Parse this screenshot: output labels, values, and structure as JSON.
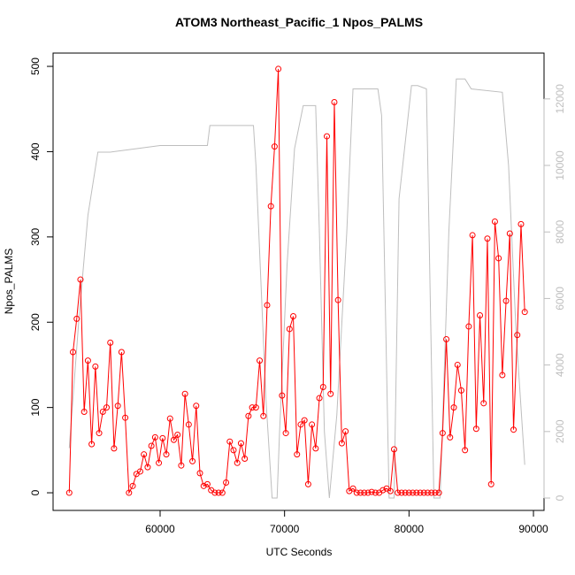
{
  "chart_data": {
    "type": "line",
    "title": "ATOM3 Northeast_Pacific_1 Npos_PALMS",
    "x_label": "UTC Seconds",
    "y_label": "Npos_PALMS",
    "xlim": [
      51400,
      90850
    ],
    "xticks": [
      60000,
      70000,
      80000,
      90000
    ],
    "ylim": [
      -20.7,
      515.6
    ],
    "yticks": [
      0,
      100,
      200,
      300,
      400,
      500
    ],
    "y2lim": [
      -372,
      13378
    ],
    "y2ticks": [
      0,
      2000,
      4000,
      6000,
      8000,
      10000,
      12000
    ],
    "y2_color": "#bebebe",
    "series": [
      {
        "color": "#ff0000",
        "markers": true,
        "x": [
          52700,
          53000,
          53300,
          53600,
          53900,
          54200,
          54500,
          54800,
          55100,
          55400,
          55700,
          56000,
          56300,
          56600,
          56900,
          57200,
          57500,
          57800,
          58100,
          58400,
          58700,
          59000,
          59300,
          59600,
          59900,
          60200,
          60500,
          60800,
          61100,
          61400,
          61700,
          62000,
          62300,
          62600,
          62900,
          63200,
          63500,
          63800,
          64100,
          64400,
          64700,
          65000,
          65300,
          65600,
          65900,
          66200,
          66500,
          66800,
          67100,
          67400,
          67700,
          68000,
          68300,
          68600,
          68900,
          69200,
          69500,
          69800,
          70100,
          70400,
          70700,
          71000,
          71300,
          71600,
          71900,
          72200,
          72500,
          72800,
          73100,
          73400,
          73700,
          74000,
          74300,
          74600,
          74900,
          75200,
          75500,
          75800,
          76100,
          76400,
          76700,
          77000,
          77300,
          77600,
          77900,
          78200,
          78500,
          78800,
          79100,
          79400,
          79700,
          80000,
          80300,
          80600,
          80900,
          81200,
          81500,
          81800,
          82100,
          82400,
          82700,
          83000,
          83300,
          83600,
          83900,
          84200,
          84500,
          84800,
          85100,
          85400,
          85700,
          86000,
          86300,
          86600,
          86900,
          87200,
          87500,
          87800,
          88100,
          88400,
          88700,
          89000,
          89300
        ],
        "values": [
          0,
          165,
          204,
          250,
          95,
          155,
          57,
          148,
          70,
          95,
          100,
          176,
          52,
          102,
          165,
          88,
          0,
          8,
          22,
          25,
          45,
          30,
          55,
          65,
          35,
          64,
          45,
          87,
          62,
          68,
          32,
          116,
          80,
          37,
          102,
          23,
          8,
          10,
          3,
          0,
          0,
          0,
          12,
          60,
          50,
          35,
          58,
          40,
          90,
          100,
          100,
          155,
          90,
          220,
          336,
          406,
          497,
          114,
          70,
          192,
          207,
          45,
          80,
          85,
          10,
          80,
          52,
          111,
          124,
          418,
          116,
          458,
          226,
          58,
          72,
          2,
          5,
          0,
          0,
          0,
          0,
          1,
          0,
          0,
          3,
          5,
          2,
          51,
          0,
          0,
          0,
          0,
          0,
          0,
          0,
          0,
          0,
          0,
          0,
          0,
          70,
          180,
          65,
          100,
          150,
          120,
          50,
          195,
          302,
          75,
          208,
          105,
          298,
          10,
          318,
          275,
          138,
          225,
          304,
          74,
          185,
          315,
          212
        ]
      },
      {
        "color": "#bebebe",
        "axis": "y2",
        "markers": false,
        "x": [
          52700,
          53500,
          54200,
          55000,
          56000,
          58000,
          60000,
          62000,
          63800,
          64000,
          65000,
          67500,
          67700,
          68500,
          69000,
          69400,
          69600,
          70200,
          70800,
          71500,
          72500,
          72800,
          73200,
          73600,
          74200,
          75000,
          75500,
          77500,
          77800,
          78400,
          78800,
          79200,
          80200,
          80700,
          81400,
          82000,
          82500,
          83200,
          83800,
          84500,
          85000,
          87500,
          88000,
          88600,
          89300
        ],
        "values": [
          1500,
          5500,
          8500,
          10400,
          10400,
          10500,
          10600,
          10600,
          10600,
          11200,
          11200,
          11200,
          10000,
          3000,
          0,
          0,
          2000,
          7000,
          10500,
          11800,
          11800,
          8000,
          2000,
          0,
          2500,
          8000,
          12300,
          12300,
          11500,
          0,
          0,
          9000,
          12400,
          12400,
          12300,
          0,
          0,
          8000,
          12600,
          12600,
          12300,
          12200,
          10000,
          5000,
          1000
        ]
      }
    ]
  }
}
